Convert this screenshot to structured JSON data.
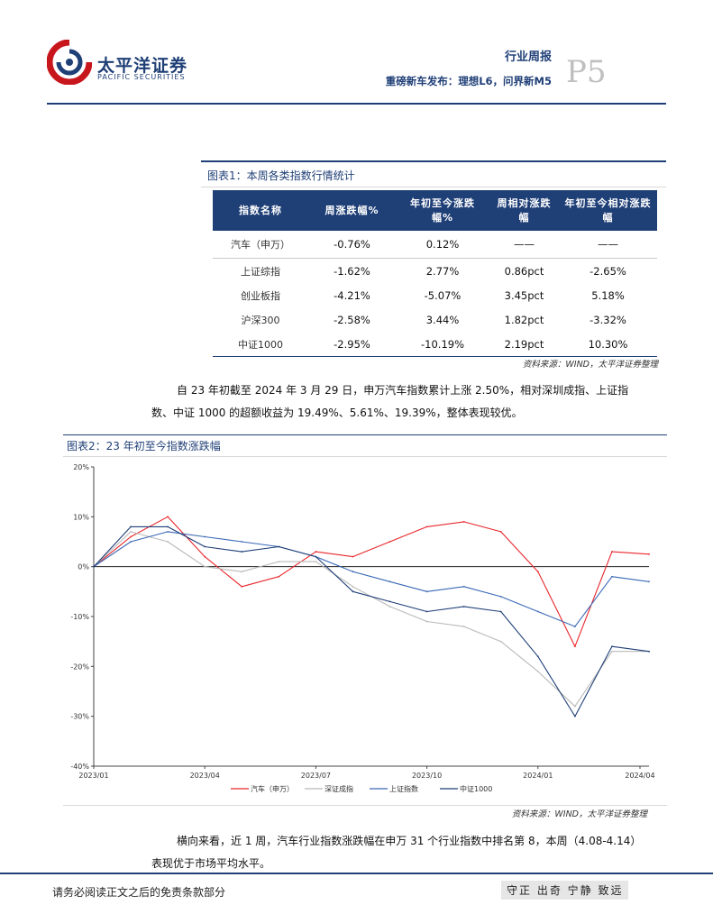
{
  "header": {
    "logo_cn": "太平洋证券",
    "logo_en": "PACIFIC SECURITIES",
    "report_type": "行业周报",
    "report_title": "重磅新车发布：理想L6，问界新M5",
    "page_number": "P5"
  },
  "table1": {
    "caption": "图表1：本周各类指数行情统计",
    "columns": [
      "指数名称",
      "周涨跌幅%",
      "年初至今涨跌幅%",
      "周相对涨跌幅",
      "年初至今相对涨跌幅"
    ],
    "rows": [
      [
        "汽车（申万）",
        "-0.76%",
        "0.12%",
        "——",
        "——"
      ],
      [
        "上证综指",
        "-1.62%",
        "2.77%",
        "0.86pct",
        "-2.65%"
      ],
      [
        "创业板指",
        "-4.21%",
        "-5.07%",
        "3.45pct",
        "5.18%"
      ],
      [
        "沪深300",
        "-2.58%",
        "3.44%",
        "1.82pct",
        "-3.32%"
      ],
      [
        "中证1000",
        "-2.95%",
        "-10.19%",
        "2.19pct",
        "10.30%"
      ]
    ],
    "source": "资料来源：WIND，太平洋证券整理"
  },
  "paragraph1": {
    "line1": "自 23 年初截至 2024  年 3 月 29 日，申万汽车指数累计上涨 2.50%，相对深圳成指、上证指",
    "line2": "数、中证 1000  的超额收益为 19.49%、5.61%、19.39%，整体表现较优。"
  },
  "chart_data": {
    "type": "line",
    "title": "图表2：23 年初至今指数涨跌幅",
    "ylim": [
      -40,
      20
    ],
    "yticks": [
      "20%",
      "10%",
      "0%",
      "-10%",
      "-20%",
      "-30%",
      "-40%"
    ],
    "xticks": [
      "2023/01",
      "2023/04",
      "2023/07",
      "2023/10",
      "2024/01",
      "2024/04"
    ],
    "x": [
      "2023/01",
      "2023/02",
      "2023/03",
      "2023/04",
      "2023/05",
      "2023/06",
      "2023/07",
      "2023/08",
      "2023/09",
      "2023/10",
      "2023/11",
      "2023/12",
      "2024/01",
      "2024/02",
      "2024/03",
      "2024/04"
    ],
    "series": [
      {
        "name": "汽车（申万）",
        "color": "#e8262b",
        "values": [
          0,
          6,
          10,
          2,
          -4,
          -2,
          3,
          2,
          5,
          8,
          9,
          7,
          -1,
          -16,
          3,
          2.5
        ]
      },
      {
        "name": "深证成指",
        "color": "#b9b9b9",
        "values": [
          0,
          7,
          5,
          0,
          -1,
          1,
          1,
          -4,
          -8,
          -11,
          -12,
          -15,
          -21,
          -28,
          -17,
          -17
        ]
      },
      {
        "name": "上证指数",
        "color": "#3a68b5",
        "values": [
          0,
          5,
          7,
          6,
          5,
          4,
          2,
          -1,
          -3,
          -5,
          -4,
          -6,
          -9,
          -12,
          -2,
          -3
        ]
      },
      {
        "name": "中证1000",
        "color": "#1f3f77",
        "values": [
          0,
          8,
          8,
          4,
          3,
          4,
          2,
          -5,
          -7,
          -9,
          -8,
          -9,
          -18,
          -30,
          -16,
          -17
        ]
      }
    ],
    "source": "资料来源：WIND，太平洋证券整理"
  },
  "paragraph2": {
    "line1": "横向来看，近 1 周，汽车行业指数涨跌幅在申万 31 个行业指数中排名第 8，本周（4.08-4.14）",
    "line2": "表现优于市场平均水平。"
  },
  "footer": {
    "disclaimer": "请务必阅读正文之后的免责条款部分",
    "motto": "守正 出奇 宁静 致远"
  },
  "colors": {
    "brand_navy": "#1f3f77",
    "brand_red": "#c8161d"
  }
}
